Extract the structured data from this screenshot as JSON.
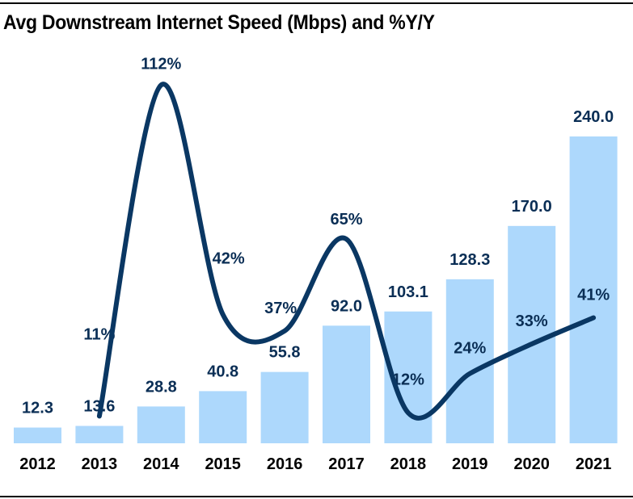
{
  "chart_data": {
    "type": "bar",
    "title": "Avg Downstream Internet Speed (Mbps) and %Y/Y",
    "xlabel": "",
    "ylabel": "",
    "categories": [
      "2012",
      "2013",
      "2014",
      "2015",
      "2016",
      "2017",
      "2018",
      "2019",
      "2020",
      "2021"
    ],
    "series": [
      {
        "name": "Avg Downstream Internet Speed (Mbps)",
        "type": "bar",
        "values": [
          12.3,
          13.6,
          28.8,
          40.8,
          55.8,
          92.0,
          103.1,
          128.3,
          170.0,
          240.0
        ],
        "labels": [
          "12.3",
          "13.6",
          "28.8",
          "40.8",
          "55.8",
          "92.0",
          "103.1",
          "128.3",
          "170.0",
          "240.0"
        ],
        "color": "#add8fc"
      },
      {
        "name": "%Y/Y",
        "type": "line",
        "smooth": true,
        "start_index": 1,
        "values": [
          11,
          112,
          42,
          37,
          65,
          12,
          24,
          33,
          41
        ],
        "labels": [
          "11%",
          "112%",
          "42%",
          "37%",
          "65%",
          "12%",
          "24%",
          "33%",
          "41%"
        ],
        "color": "#0a3763"
      }
    ],
    "ylim": [
      0,
      240
    ],
    "grid": false,
    "legend": "none"
  }
}
